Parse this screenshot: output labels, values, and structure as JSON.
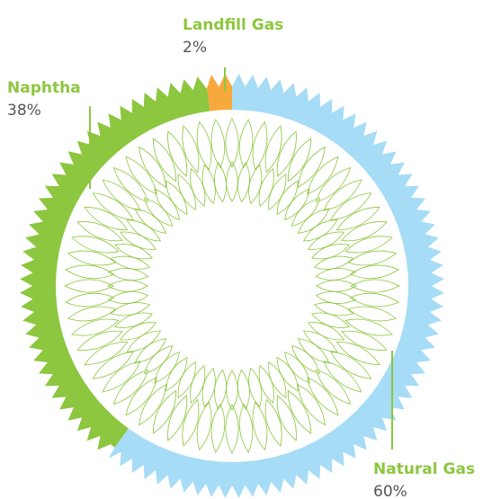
{
  "chart_data": {
    "type": "pie",
    "categories": [
      "Natural Gas",
      "Naphtha",
      "Landfill Gas"
    ],
    "values": [
      60,
      38,
      2
    ],
    "value_labels": [
      "60%",
      "38%",
      "2%"
    ],
    "colors": [
      "#a6dcf5",
      "#8dc63f",
      "#f7a93b"
    ]
  }
}
